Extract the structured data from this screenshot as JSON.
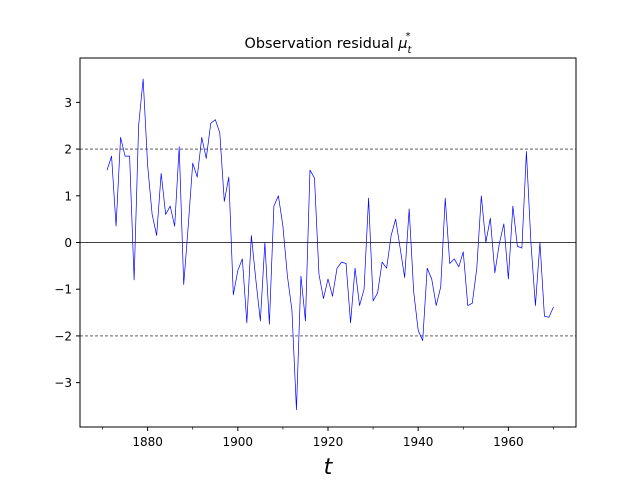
{
  "chart_data": {
    "type": "line",
    "title": "Observation residual ",
    "title_symbol": "μ",
    "title_sub": "t",
    "title_sup": "*",
    "xlabel": "t",
    "ylabel": "",
    "xlim": [
      1865,
      1975
    ],
    "ylim": [
      -3.95,
      3.95
    ],
    "xticks": [
      1880,
      1900,
      1920,
      1940,
      1960
    ],
    "xticks_minor": [
      1870,
      1890,
      1910,
      1930,
      1950,
      1970
    ],
    "yticks": [
      -3,
      -2,
      -1,
      0,
      1,
      2,
      3
    ],
    "hlines": [
      {
        "y": 2,
        "style": "dashed"
      },
      {
        "y": 0,
        "style": "solid"
      },
      {
        "y": -2,
        "style": "dashed"
      }
    ],
    "grid": false,
    "series_color": "#0000ff",
    "series": [
      {
        "x": [
          1871,
          1872,
          1873,
          1874,
          1875,
          1876,
          1877,
          1878,
          1879,
          1880,
          1881,
          1882,
          1883,
          1884,
          1885,
          1886,
          1887,
          1888,
          1889,
          1890,
          1891,
          1892,
          1893,
          1894,
          1895,
          1896,
          1897,
          1898,
          1899,
          1900,
          1901,
          1902,
          1903,
          1904,
          1905,
          1906,
          1907,
          1908,
          1909,
          1910,
          1911,
          1912,
          1913,
          1914,
          1915,
          1916,
          1917,
          1918,
          1919,
          1920,
          1921,
          1922,
          1923,
          1924,
          1925,
          1926,
          1927,
          1928,
          1929,
          1930,
          1931,
          1932,
          1933,
          1934,
          1935,
          1936,
          1937,
          1938,
          1939,
          1940,
          1941,
          1942,
          1943,
          1944,
          1945,
          1946,
          1947,
          1948,
          1949,
          1950,
          1951,
          1952,
          1953,
          1954,
          1955,
          1956,
          1957,
          1958,
          1959,
          1960,
          1961,
          1962,
          1963,
          1964,
          1965,
          1966,
          1967,
          1968,
          1969,
          1970
        ],
        "values": [
          1.55,
          1.85,
          0.35,
          2.25,
          1.85,
          1.85,
          -0.8,
          2.5,
          3.5,
          1.65,
          0.6,
          0.15,
          1.48,
          0.6,
          0.78,
          0.35,
          2.05,
          -0.9,
          0.35,
          1.7,
          1.4,
          2.25,
          1.8,
          2.55,
          2.63,
          2.35,
          0.88,
          1.4,
          -1.12,
          -0.6,
          -0.35,
          -1.72,
          0.15,
          -0.8,
          -1.68,
          0.0,
          -1.75,
          0.78,
          1.0,
          0.35,
          -0.72,
          -1.45,
          -3.58,
          -0.72,
          -1.68,
          1.55,
          1.38,
          -0.68,
          -1.2,
          -0.78,
          -1.15,
          -0.55,
          -0.42,
          -0.45,
          -1.72,
          -0.55,
          -1.35,
          -1.0,
          0.95,
          -1.25,
          -1.08,
          -0.42,
          -0.55,
          0.15,
          0.5,
          -0.12,
          -0.75,
          0.72,
          -1.05,
          -1.88,
          -2.1,
          -0.55,
          -0.78,
          -1.35,
          -0.95,
          0.95,
          -0.45,
          -0.35,
          -0.52,
          -0.2,
          -1.35,
          -1.3,
          -0.55,
          1.0,
          0.0,
          0.52,
          -0.65,
          -0.02,
          0.4,
          -0.78,
          0.78,
          -0.08,
          -0.12,
          1.95,
          0.0,
          -1.35,
          0.0,
          -1.58,
          -1.6,
          -1.38
        ]
      }
    ]
  }
}
